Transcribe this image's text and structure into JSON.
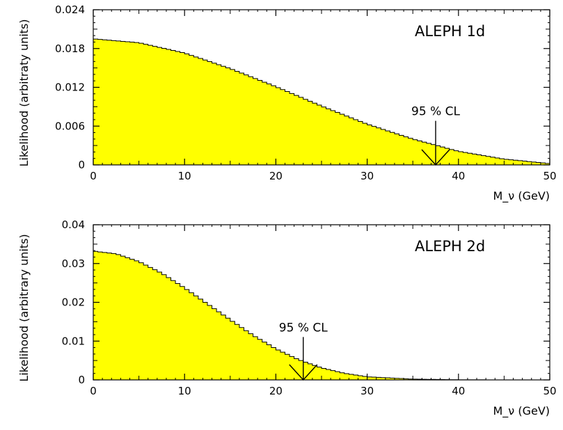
{
  "chart_data": [
    {
      "type": "area",
      "title": "ALEPH 1d",
      "xlabel": "M_ν (GeV)",
      "ylabel": "Likelihood (arbitraty units)",
      "xlim": [
        0,
        50
      ],
      "ylim": [
        0,
        0.024
      ],
      "x_ticks": [
        0,
        10,
        20,
        30,
        40,
        50
      ],
      "x_tick_labels": [
        "0",
        "10",
        "20",
        "30",
        "40",
        "50"
      ],
      "y_ticks": [
        0,
        0.006,
        0.012,
        0.018,
        0.024
      ],
      "y_tick_labels": [
        "0",
        "0.006",
        "0.012",
        "0.018",
        "0.024"
      ],
      "fill_color": "#ffff00",
      "histogram": true,
      "bin_width": 0.5,
      "curve": {
        "x": [
          0,
          5,
          10,
          15,
          20,
          25,
          30,
          35,
          40,
          45,
          50
        ],
        "y": [
          0.0195,
          0.0189,
          0.0173,
          0.0149,
          0.0121,
          0.0091,
          0.0063,
          0.004,
          0.0021,
          0.0009,
          0.0002
        ]
      },
      "annotation": {
        "text": "95 % CL",
        "x": 37.5
      }
    },
    {
      "type": "area",
      "title": "ALEPH 2d",
      "xlabel": "M_ν (GeV)",
      "ylabel": "Likelihood (arbitrary units)",
      "xlim": [
        0,
        50
      ],
      "ylim": [
        0,
        0.04
      ],
      "x_ticks": [
        0,
        10,
        20,
        30,
        40,
        50
      ],
      "x_tick_labels": [
        "0",
        "10",
        "20",
        "30",
        "40",
        "50"
      ],
      "y_ticks": [
        0,
        0.01,
        0.02,
        0.03,
        0.04
      ],
      "y_tick_labels": [
        "0",
        "0.01",
        "0.02",
        "0.03",
        "0.04"
      ],
      "fill_color": "#ffff00",
      "histogram": true,
      "bin_width": 0.5,
      "curve": {
        "x": [
          0,
          2.5,
          5,
          7.5,
          10,
          12.5,
          15,
          17.5,
          20,
          22.5,
          25,
          27.5,
          30,
          35,
          40,
          45,
          50
        ],
        "y": [
          0.0332,
          0.0325,
          0.0305,
          0.0275,
          0.0237,
          0.0196,
          0.0155,
          0.0115,
          0.008,
          0.0052,
          0.0031,
          0.0017,
          0.0008,
          0.0002,
          3e-05,
          0,
          0
        ]
      },
      "annotation": {
        "text": "95 % CL",
        "x": 23
      }
    }
  ]
}
